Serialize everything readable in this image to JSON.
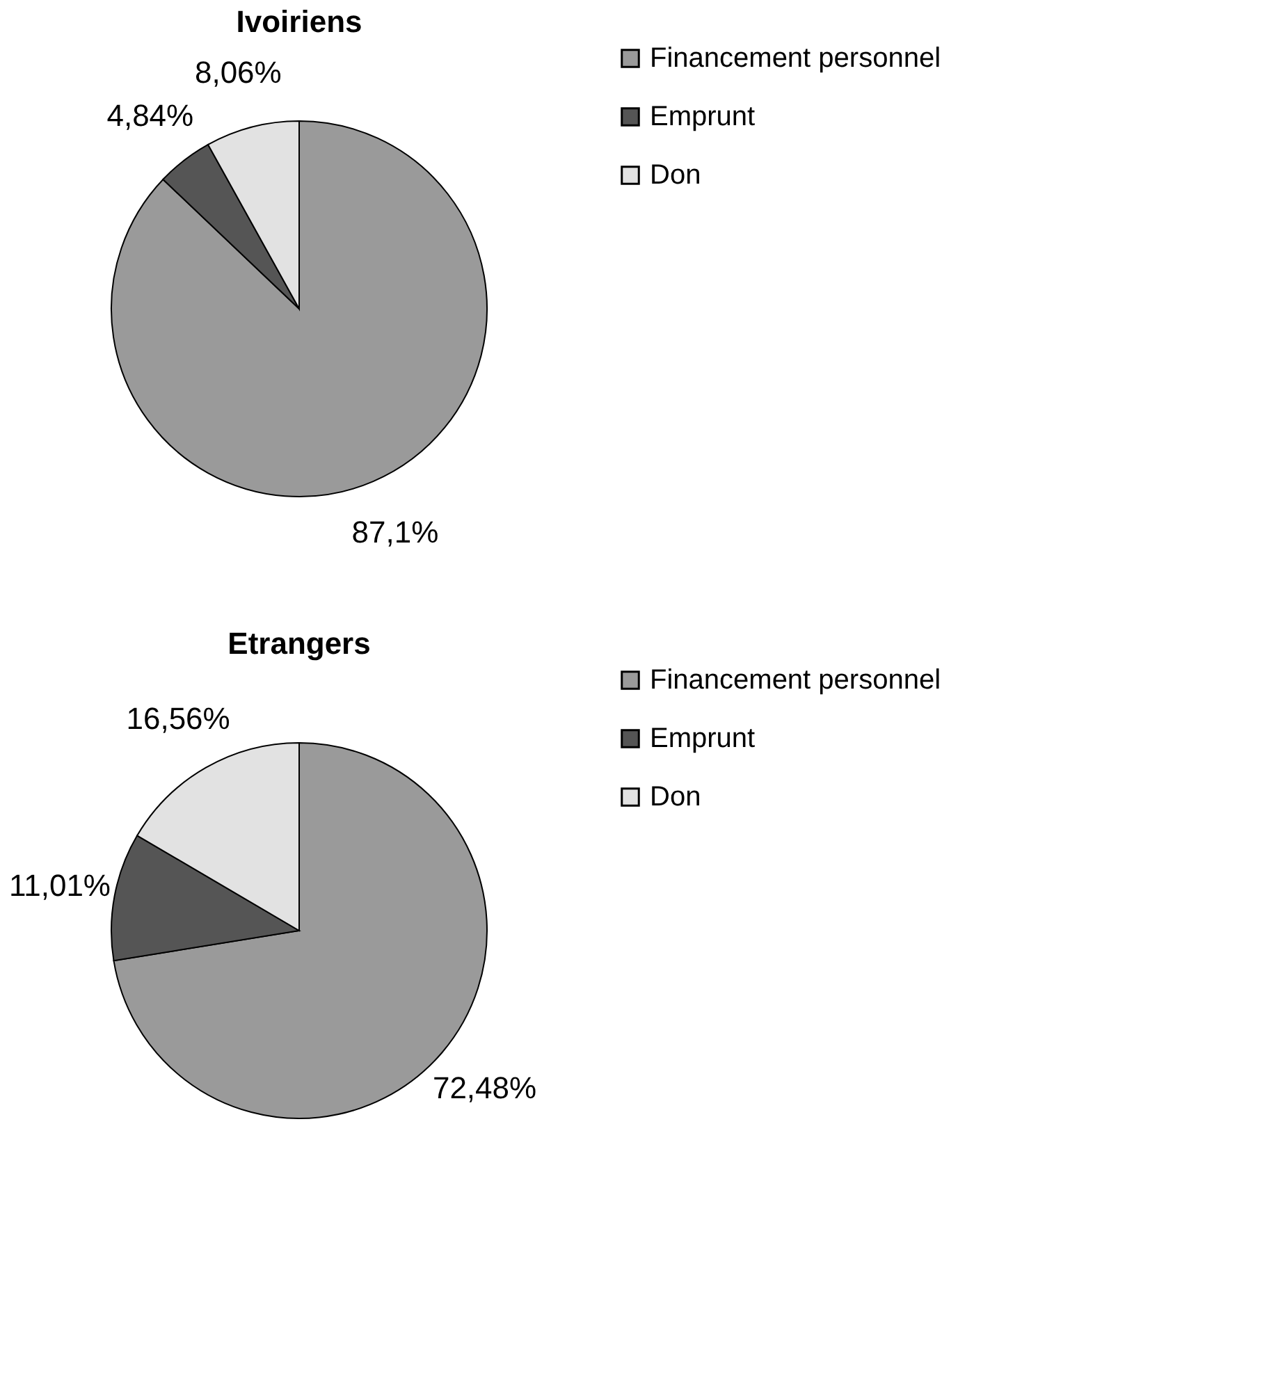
{
  "chart_data": [
    {
      "type": "pie",
      "title": "Ivoiriens",
      "categories": [
        "Financement personnel",
        "Emprunt",
        "Don"
      ],
      "values": [
        87.1,
        4.84,
        8.06
      ],
      "colors": [
        "#9a9a9a",
        "#555555",
        "#e2e2e2"
      ],
      "value_labels": [
        "87,1%",
        "4,84%",
        "8,06%"
      ],
      "legend": "right"
    },
    {
      "type": "pie",
      "title": "Etrangers",
      "categories": [
        "Financement personnel",
        "Emprunt",
        "Don"
      ],
      "values": [
        72.48,
        11.01,
        16.56
      ],
      "colors": [
        "#9a9a9a",
        "#555555",
        "#e2e2e2"
      ],
      "value_labels": [
        "72,48%",
        "11,01%",
        "16,56%"
      ],
      "legend": "right"
    }
  ]
}
